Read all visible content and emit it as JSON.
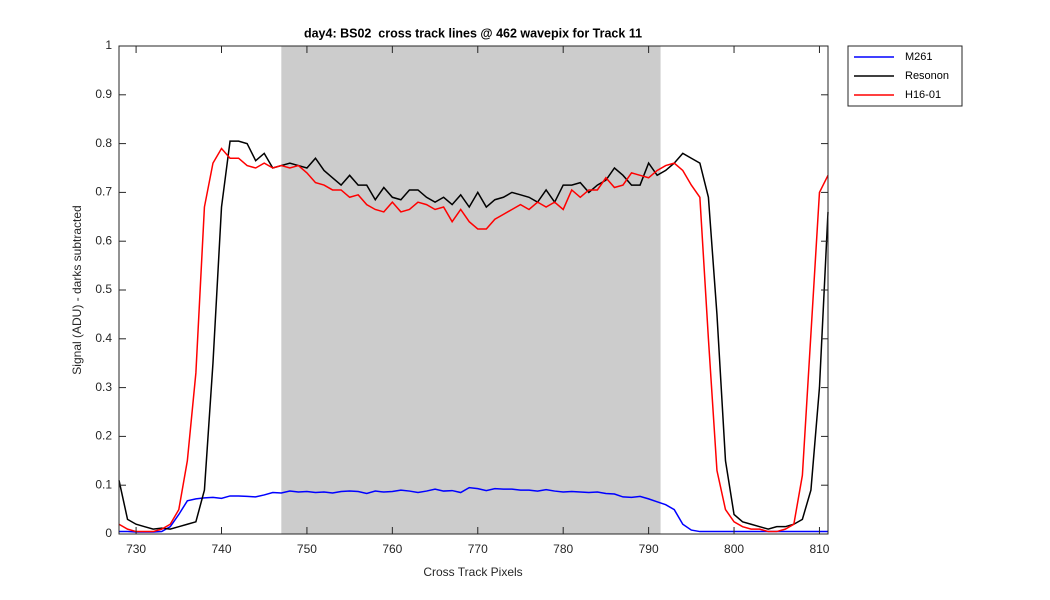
{
  "chart_data": {
    "type": "line",
    "title": "day4: BS02  cross track lines @ 462 wavepix for Track 11",
    "x_label": "Cross Track Pixels",
    "y_label": "Signal (ADU) - darks subtracted",
    "xlim": [
      728,
      811
    ],
    "ylim": [
      0,
      1
    ],
    "xticks": [
      730,
      740,
      750,
      760,
      770,
      780,
      790,
      800,
      810
    ],
    "yticks": [
      0,
      0.1,
      0.2,
      0.3,
      0.4,
      0.5,
      0.6,
      0.7,
      0.8,
      0.9,
      1
    ],
    "shaded_xrange": [
      747,
      791.4
    ],
    "shaded_color": "#cccccc",
    "legend_position": "northeastoutside",
    "x": [
      728,
      729,
      730,
      731,
      732,
      733,
      734,
      735,
      736,
      737,
      738,
      739,
      740,
      741,
      742,
      743,
      744,
      745,
      746,
      747,
      748,
      749,
      750,
      751,
      752,
      753,
      754,
      755,
      756,
      757,
      758,
      759,
      760,
      761,
      762,
      763,
      764,
      765,
      766,
      767,
      768,
      769,
      770,
      771,
      772,
      773,
      774,
      775,
      776,
      777,
      778,
      779,
      780,
      781,
      782,
      783,
      784,
      785,
      786,
      787,
      788,
      789,
      790,
      791,
      792,
      793,
      794,
      795,
      796,
      797,
      798,
      799,
      800,
      801,
      802,
      803,
      804,
      805,
      806,
      807,
      808,
      809,
      810,
      811
    ],
    "series": [
      {
        "name": "M261",
        "color": "#0000ff",
        "values": [
          0.005,
          0.005,
          0.004,
          0.004,
          0.004,
          0.005,
          0.015,
          0.04,
          0.068,
          0.072,
          0.074,
          0.075,
          0.073,
          0.078,
          0.078,
          0.077,
          0.076,
          0.08,
          0.085,
          0.084,
          0.088,
          0.086,
          0.087,
          0.085,
          0.086,
          0.084,
          0.087,
          0.088,
          0.087,
          0.083,
          0.088,
          0.086,
          0.087,
          0.09,
          0.088,
          0.085,
          0.088,
          0.092,
          0.088,
          0.089,
          0.085,
          0.095,
          0.093,
          0.089,
          0.093,
          0.092,
          0.092,
          0.09,
          0.09,
          0.088,
          0.091,
          0.088,
          0.086,
          0.087,
          0.086,
          0.085,
          0.086,
          0.083,
          0.082,
          0.076,
          0.075,
          0.077,
          0.072,
          0.066,
          0.06,
          0.05,
          0.02,
          0.008,
          0.005,
          0.005,
          0.005,
          0.005,
          0.005,
          0.005,
          0.005,
          0.005,
          0.005,
          0.005,
          0.005,
          0.005,
          0.005,
          0.005,
          0.005,
          0.005
        ]
      },
      {
        "name": "Resonon",
        "color": "#000000",
        "values": [
          0.11,
          0.03,
          0.02,
          0.015,
          0.01,
          0.012,
          0.01,
          0.015,
          0.02,
          0.025,
          0.09,
          0.35,
          0.67,
          0.805,
          0.805,
          0.8,
          0.765,
          0.78,
          0.75,
          0.755,
          0.76,
          0.755,
          0.75,
          0.77,
          0.745,
          0.73,
          0.715,
          0.735,
          0.715,
          0.715,
          0.685,
          0.71,
          0.69,
          0.685,
          0.705,
          0.705,
          0.69,
          0.68,
          0.69,
          0.675,
          0.695,
          0.67,
          0.7,
          0.67,
          0.685,
          0.69,
          0.7,
          0.695,
          0.69,
          0.68,
          0.705,
          0.68,
          0.715,
          0.715,
          0.72,
          0.7,
          0.715,
          0.725,
          0.75,
          0.735,
          0.715,
          0.715,
          0.76,
          0.735,
          0.745,
          0.76,
          0.78,
          0.77,
          0.76,
          0.69,
          0.45,
          0.15,
          0.04,
          0.025,
          0.02,
          0.015,
          0.01,
          0.015,
          0.015,
          0.02,
          0.03,
          0.09,
          0.3,
          0.66
        ]
      },
      {
        "name": "H16-01",
        "color": "#ff0000",
        "values": [
          0.02,
          0.01,
          0.005,
          0.005,
          0.005,
          0.01,
          0.02,
          0.05,
          0.15,
          0.33,
          0.67,
          0.76,
          0.79,
          0.77,
          0.77,
          0.755,
          0.75,
          0.76,
          0.75,
          0.755,
          0.75,
          0.755,
          0.74,
          0.72,
          0.715,
          0.705,
          0.705,
          0.69,
          0.695,
          0.675,
          0.665,
          0.66,
          0.68,
          0.66,
          0.665,
          0.68,
          0.675,
          0.665,
          0.67,
          0.64,
          0.665,
          0.64,
          0.625,
          0.625,
          0.645,
          0.655,
          0.665,
          0.675,
          0.665,
          0.68,
          0.67,
          0.68,
          0.665,
          0.705,
          0.69,
          0.705,
          0.705,
          0.73,
          0.71,
          0.715,
          0.74,
          0.735,
          0.73,
          0.745,
          0.755,
          0.76,
          0.745,
          0.715,
          0.69,
          0.4,
          0.13,
          0.05,
          0.025,
          0.015,
          0.01,
          0.01,
          0.005,
          0.005,
          0.01,
          0.02,
          0.12,
          0.41,
          0.7,
          0.735
        ]
      }
    ]
  }
}
